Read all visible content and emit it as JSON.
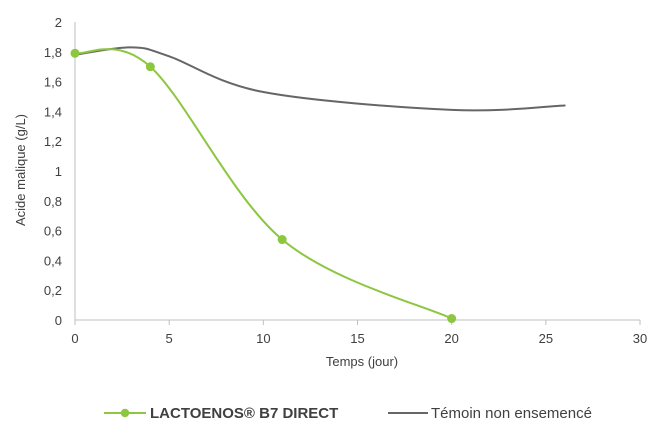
{
  "chart_data": {
    "type": "line",
    "title": "",
    "xlabel": "Temps (jour)",
    "ylabel": "Acide malique  (g/L)",
    "xlim": [
      0,
      30
    ],
    "ylim": [
      0,
      2
    ],
    "xticks": [
      0,
      5,
      10,
      15,
      20,
      25,
      30
    ],
    "xtick_labels": [
      "0",
      "5",
      "10",
      "15",
      "20",
      "25",
      "30"
    ],
    "yticks": [
      0,
      0.2,
      0.4,
      0.6,
      0.8,
      1,
      1.2,
      1.4,
      1.6,
      1.8,
      2
    ],
    "ytick_labels": [
      "0",
      "0,2",
      "0,4",
      "0,6",
      "0,8",
      "1",
      "1,2",
      "1,4",
      "1,6",
      "1,8",
      "2"
    ],
    "grid": false,
    "legend_position": "bottom",
    "series": [
      {
        "name": "LACTOENOS® B7 DIRECT",
        "color": "#8dc63f",
        "markers": true,
        "smooth": true,
        "x": [
          0,
          4,
          11,
          20
        ],
        "y": [
          1.79,
          1.7,
          0.54,
          0.01
        ]
      },
      {
        "name": "Témoin non ensemencé",
        "color": "#666666",
        "markers": false,
        "smooth": true,
        "x": [
          0,
          3,
          5,
          10,
          20,
          26
        ],
        "y": [
          1.78,
          1.83,
          1.77,
          1.53,
          1.41,
          1.44
        ]
      }
    ]
  }
}
